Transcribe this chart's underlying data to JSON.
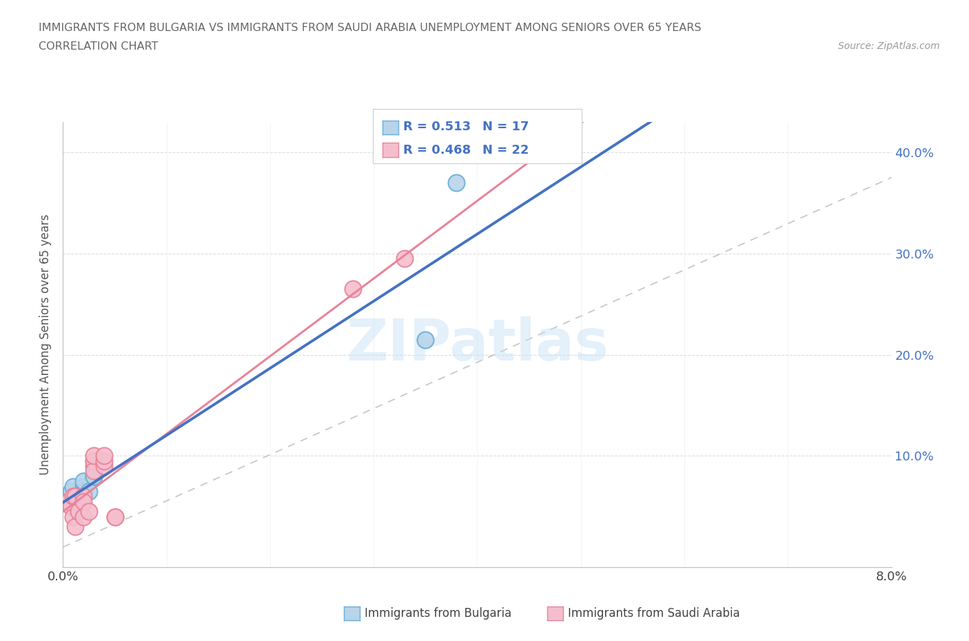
{
  "title_line1": "IMMIGRANTS FROM BULGARIA VS IMMIGRANTS FROM SAUDI ARABIA UNEMPLOYMENT AMONG SENIORS OVER 65 YEARS",
  "title_line2": "CORRELATION CHART",
  "source": "Source: ZipAtlas.com",
  "ylabel": "Unemployment Among Seniors over 65 years",
  "xlim": [
    0.0,
    0.08
  ],
  "ylim": [
    -0.01,
    0.43
  ],
  "xticks": [
    0.0,
    0.01,
    0.02,
    0.03,
    0.04,
    0.05,
    0.06,
    0.07,
    0.08
  ],
  "yticks": [
    0.0,
    0.1,
    0.2,
    0.3,
    0.4
  ],
  "legend_r1": "R = 0.513",
  "legend_n1": "N = 17",
  "legend_r2": "R = 0.468",
  "legend_n2": "N = 22",
  "legend_label1": "Immigrants from Bulgaria",
  "legend_label2": "Immigrants from Saudi Arabia",
  "color_bulgaria_face": "#b8d4ea",
  "color_bulgaria_edge": "#6aaed6",
  "color_saudi_face": "#f5bece",
  "color_saudi_edge": "#e8849a",
  "color_line_bulgaria": "#4472c4",
  "color_line_saudi": "#e8849a",
  "color_ref_line": "#c8c8c8",
  "watermark": "ZIPatlas",
  "bulgaria_x": [
    0.0005,
    0.0008,
    0.001,
    0.001,
    0.001,
    0.0012,
    0.0015,
    0.0015,
    0.002,
    0.002,
    0.002,
    0.0025,
    0.003,
    0.003,
    0.003,
    0.035,
    0.038
  ],
  "bulgaria_y": [
    0.06,
    0.065,
    0.07,
    0.055,
    0.05,
    0.06,
    0.06,
    0.045,
    0.07,
    0.065,
    0.075,
    0.065,
    0.09,
    0.08,
    0.08,
    0.215,
    0.37
  ],
  "saudi_x": [
    0.0005,
    0.0008,
    0.001,
    0.001,
    0.0012,
    0.0012,
    0.0015,
    0.002,
    0.002,
    0.002,
    0.0025,
    0.003,
    0.003,
    0.003,
    0.003,
    0.004,
    0.004,
    0.004,
    0.005,
    0.005,
    0.028,
    0.033
  ],
  "saudi_y": [
    0.055,
    0.05,
    0.06,
    0.04,
    0.03,
    0.06,
    0.045,
    0.06,
    0.055,
    0.04,
    0.045,
    0.095,
    0.095,
    0.085,
    0.1,
    0.09,
    0.095,
    0.1,
    0.04,
    0.04,
    0.265,
    0.295
  ],
  "ref_line_x": [
    0.0,
    0.08
  ],
  "ref_line_y": [
    0.01,
    0.375
  ],
  "bulgaria_trend_x": [
    0.0,
    0.08
  ],
  "saudi_trend_x": [
    0.0,
    0.08
  ]
}
